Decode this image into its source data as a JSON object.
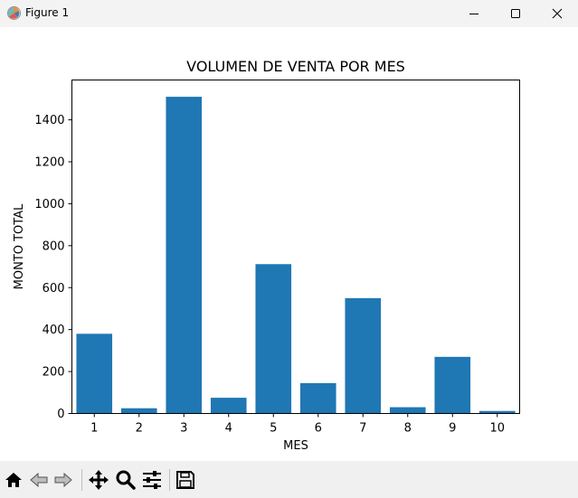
{
  "window": {
    "title": "Figure 1",
    "app_icon": "matplotlib-figure-icon",
    "controls": [
      "minimize-icon",
      "maximize-icon",
      "close-icon"
    ]
  },
  "toolbar": {
    "tools": [
      "home-icon",
      "back-arrow-icon",
      "forward-arrow-icon",
      "pan-move-icon",
      "zoom-magnifier-icon",
      "configure-subplots-icon",
      "save-floppy-icon"
    ]
  },
  "chart_data": {
    "type": "bar",
    "title": "VOLUMEN DE VENTA POR MES",
    "xlabel": "MES",
    "ylabel": "MONTO TOTAL",
    "categories": [
      "1",
      "2",
      "3",
      "4",
      "5",
      "6",
      "7",
      "8",
      "9",
      "10"
    ],
    "values": [
      380,
      25,
      1510,
      75,
      712,
      145,
      550,
      30,
      270,
      12
    ],
    "ylim": [
      0,
      1590
    ],
    "yticks": [
      0,
      200,
      400,
      600,
      800,
      1000,
      1200,
      1400
    ],
    "bar_color": "#1f77b4",
    "grid": false,
    "legend": "none"
  }
}
